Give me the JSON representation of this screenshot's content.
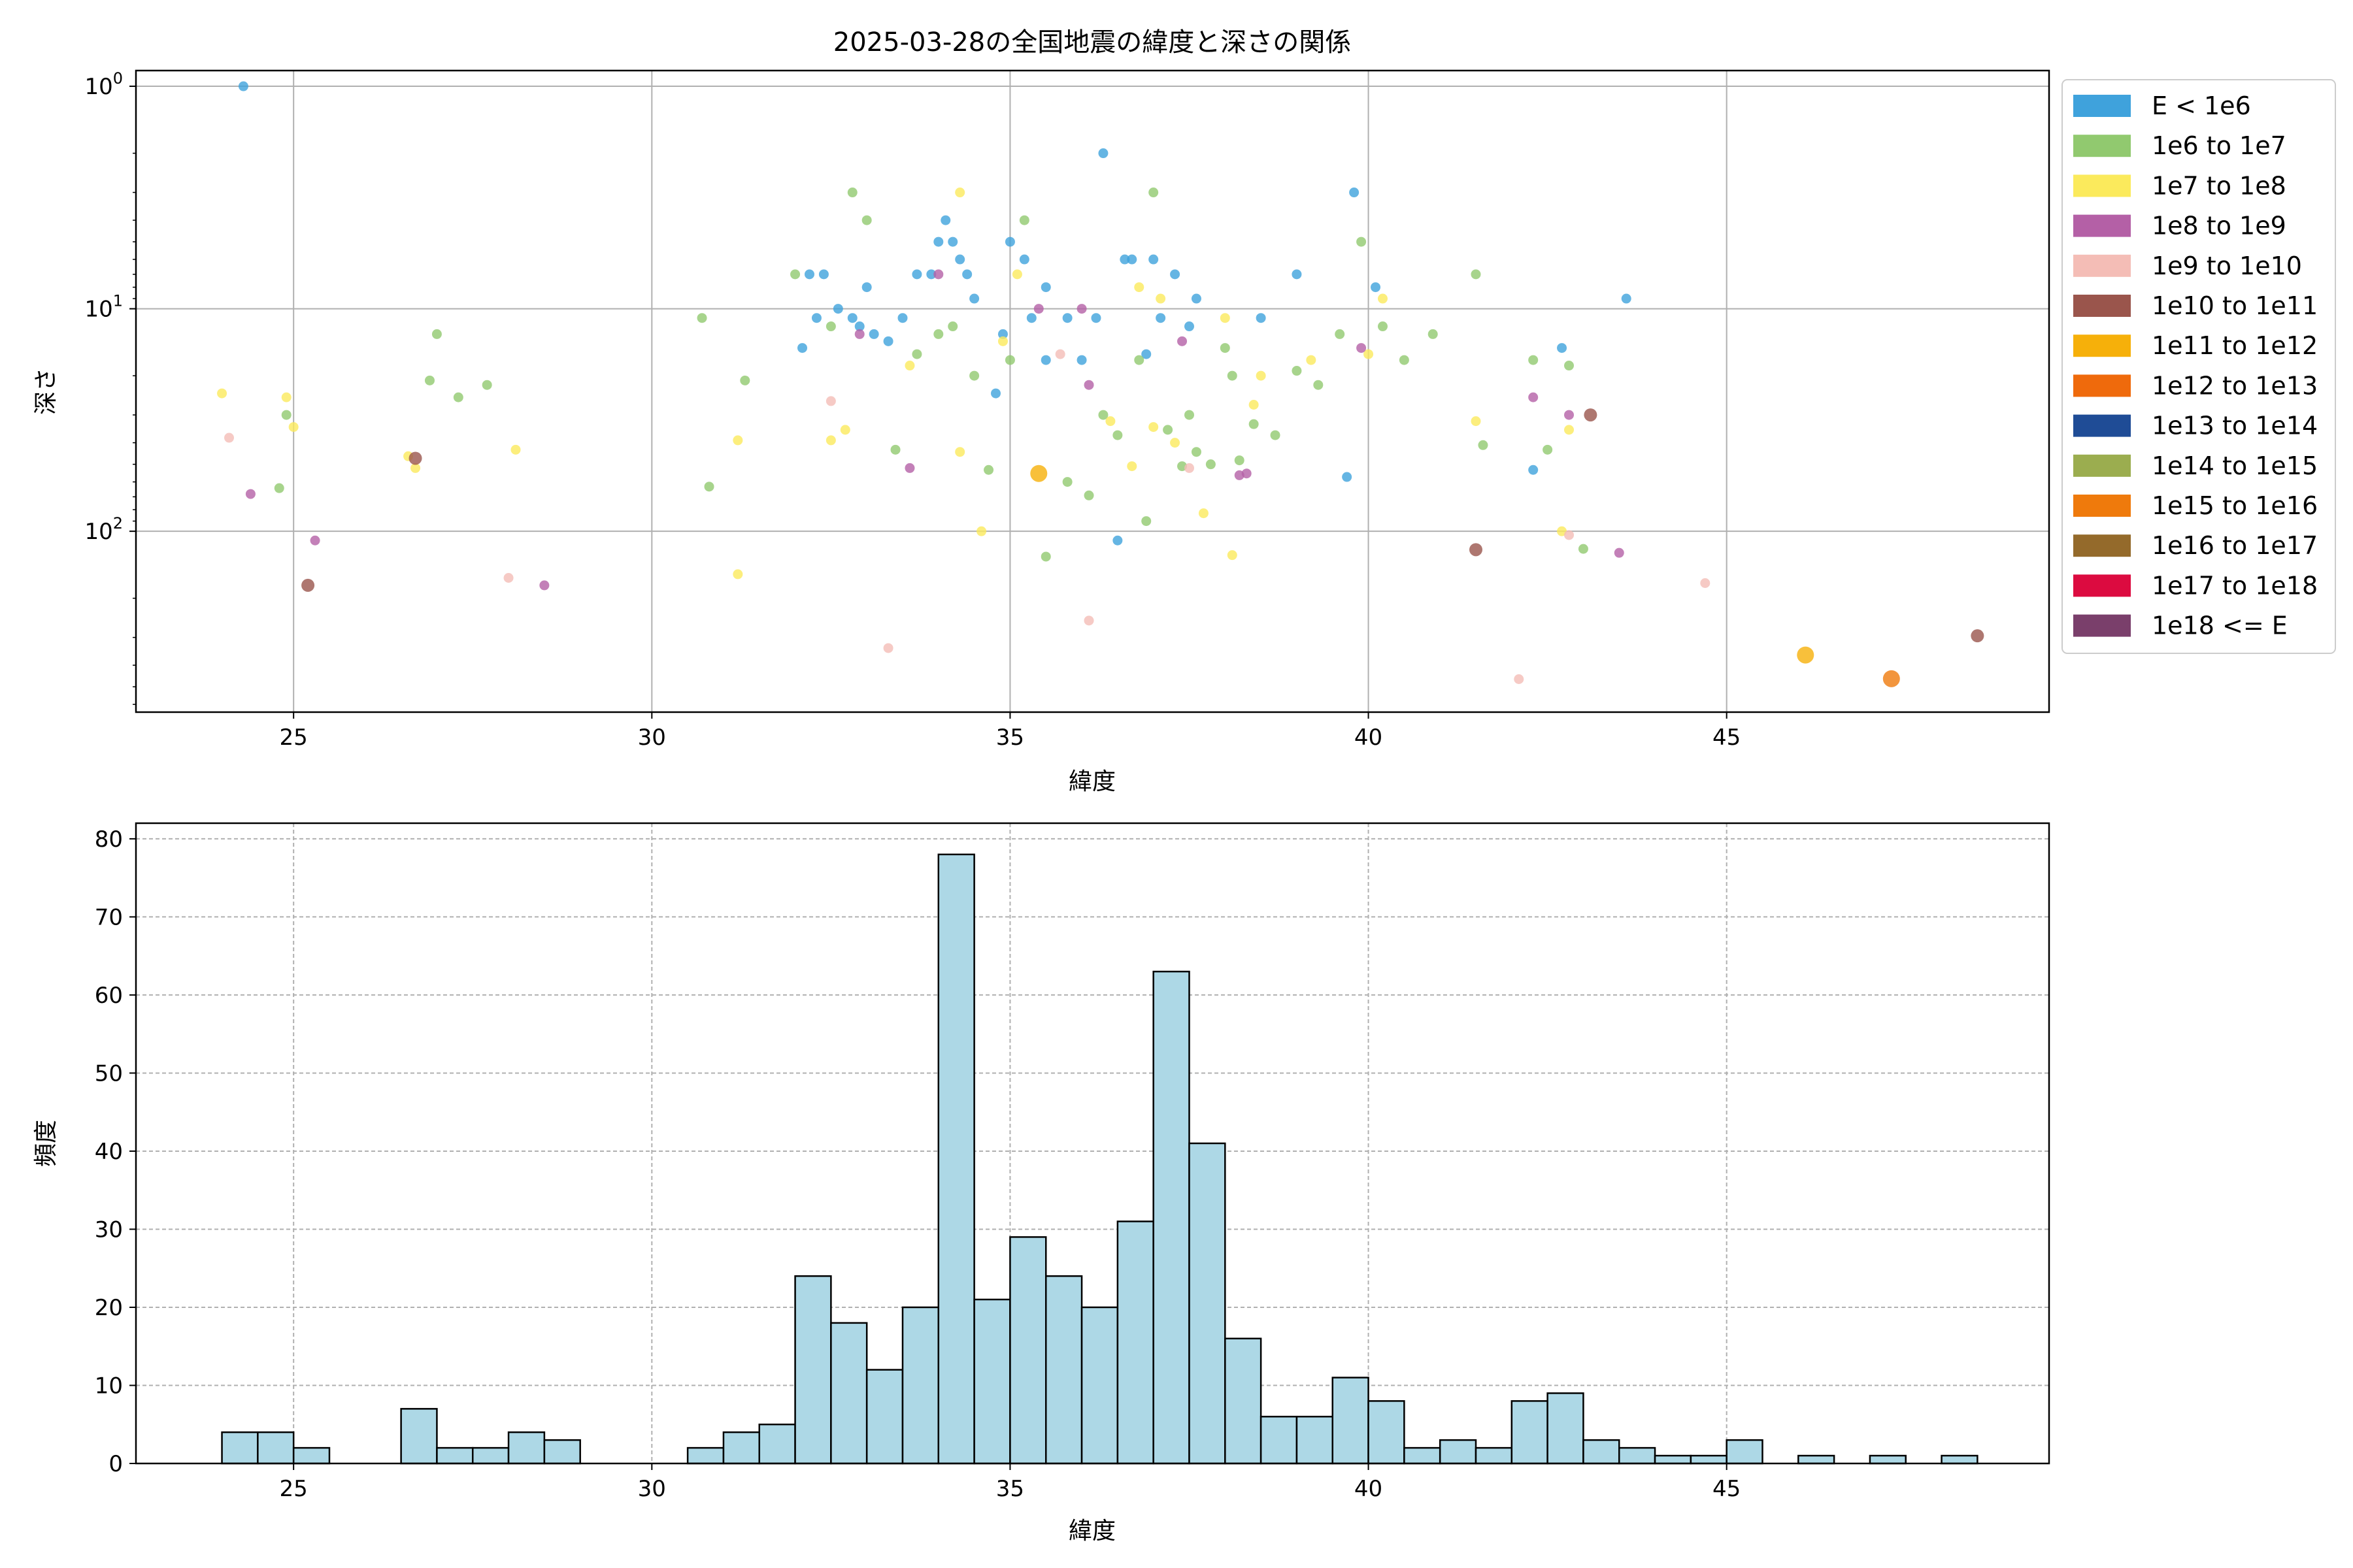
{
  "title": "2025-03-28の全国地震の緯度と深さの関係",
  "legend": {
    "entries": [
      {
        "label": "E < 1e6",
        "color": "#3fa2dc"
      },
      {
        "label": "1e6 to 1e7",
        "color": "#91c96f"
      },
      {
        "label": "1e7 to 1e8",
        "color": "#fbea5c"
      },
      {
        "label": "1e8 to 1e9",
        "color": "#b460a6"
      },
      {
        "label": "1e9 to 1e10",
        "color": "#f4bdb6"
      },
      {
        "label": "1e10 to 1e11",
        "color": "#9a554c"
      },
      {
        "label": "1e11 to 1e12",
        "color": "#f6b00a"
      },
      {
        "label": "1e12 to 1e13",
        "color": "#ef6a0c"
      },
      {
        "label": "1e13 to 1e14",
        "color": "#1f4c96"
      },
      {
        "label": "1e14 to 1e15",
        "color": "#9bad4f"
      },
      {
        "label": "1e15 to 1e16",
        "color": "#ef7a0c"
      },
      {
        "label": "1e16 to 1e17",
        "color": "#946a2b"
      },
      {
        "label": "1e17 to 1e18",
        "color": "#dc0b40"
      },
      {
        "label": "1e18 <= E",
        "color": "#7a3f6b"
      }
    ]
  },
  "chart_data": [
    {
      "type": "scatter",
      "title": "2025-03-28の全国地震の緯度と深さの関係",
      "xlabel": "緯度",
      "ylabel": "深さ",
      "xlim": [
        22.8,
        49.5
      ],
      "ylim": [
        650,
        0.85
      ],
      "yscale": "log",
      "y_inverted": true,
      "grid": true,
      "legend_position": "outside-right",
      "x_ticks": [
        25,
        30,
        35,
        40,
        45
      ],
      "y_ticks": [
        {
          "value": 1,
          "base": "10",
          "exp": "0"
        },
        {
          "value": 10,
          "base": "10",
          "exp": "1"
        },
        {
          "value": 100,
          "base": "10",
          "exp": "2"
        }
      ],
      "series": [
        {
          "class": 0,
          "points": [
            [
              24.3,
              1
            ],
            [
              32.1,
              15
            ],
            [
              32.2,
              7
            ],
            [
              32.3,
              11
            ],
            [
              32.4,
              7
            ],
            [
              32.6,
              10
            ],
            [
              32.8,
              11
            ],
            [
              33.0,
              8
            ],
            [
              33.1,
              13
            ],
            [
              33.5,
              11
            ],
            [
              33.7,
              7
            ],
            [
              33.9,
              7
            ],
            [
              34.0,
              5
            ],
            [
              34.1,
              4
            ],
            [
              34.2,
              5
            ],
            [
              34.3,
              6
            ],
            [
              34.4,
              7
            ],
            [
              34.5,
              9
            ],
            [
              34.8,
              24
            ],
            [
              35.0,
              5
            ],
            [
              35.2,
              6
            ],
            [
              35.3,
              11
            ],
            [
              35.5,
              8
            ],
            [
              35.8,
              11
            ],
            [
              36.0,
              17
            ],
            [
              36.3,
              2
            ],
            [
              36.6,
              6
            ],
            [
              36.7,
              6
            ],
            [
              36.9,
              16
            ],
            [
              37.0,
              6
            ],
            [
              37.1,
              11
            ],
            [
              37.3,
              7
            ],
            [
              37.5,
              12
            ],
            [
              38.5,
              11
            ],
            [
              39.0,
              7
            ],
            [
              39.8,
              3
            ],
            [
              40.1,
              8
            ],
            [
              42.3,
              53
            ],
            [
              42.7,
              15
            ],
            [
              43.6,
              9
            ],
            [
              35.5,
              17
            ],
            [
              36.2,
              11
            ],
            [
              34.9,
              13
            ],
            [
              37.6,
              9
            ],
            [
              33.3,
              14
            ],
            [
              32.9,
              12
            ],
            [
              36.5,
              110
            ],
            [
              39.7,
              57
            ]
          ]
        },
        {
          "class": 1,
          "points": [
            [
              24.8,
              64
            ],
            [
              24.9,
              30
            ],
            [
              26.9,
              21
            ],
            [
              27.0,
              13
            ],
            [
              27.3,
              25
            ],
            [
              27.7,
              22
            ],
            [
              30.7,
              11
            ],
            [
              30.8,
              63
            ],
            [
              31.3,
              21
            ],
            [
              32.0,
              7
            ],
            [
              32.5,
              12
            ],
            [
              32.8,
              3
            ],
            [
              33.0,
              4
            ],
            [
              33.4,
              43
            ],
            [
              33.7,
              16
            ],
            [
              34.0,
              13
            ],
            [
              34.2,
              12
            ],
            [
              34.5,
              20
            ],
            [
              34.7,
              53
            ],
            [
              35.0,
              17
            ],
            [
              35.2,
              4
            ],
            [
              35.5,
              130
            ],
            [
              35.8,
              60
            ],
            [
              36.1,
              69
            ],
            [
              36.3,
              30
            ],
            [
              36.5,
              37
            ],
            [
              36.8,
              17
            ],
            [
              37.0,
              3
            ],
            [
              37.2,
              35
            ],
            [
              37.4,
              51
            ],
            [
              37.6,
              44
            ],
            [
              37.8,
              50
            ],
            [
              38.0,
              15
            ],
            [
              38.2,
              48
            ],
            [
              38.4,
              33
            ],
            [
              38.7,
              37
            ],
            [
              39.0,
              19
            ],
            [
              39.3,
              22
            ],
            [
              39.6,
              13
            ],
            [
              39.9,
              5
            ],
            [
              40.2,
              12
            ],
            [
              40.5,
              17
            ],
            [
              40.9,
              13
            ],
            [
              41.5,
              7
            ],
            [
              41.6,
              41
            ],
            [
              42.3,
              17
            ],
            [
              42.5,
              43
            ],
            [
              42.8,
              18
            ],
            [
              43.0,
              120
            ],
            [
              36.9,
              90
            ],
            [
              37.5,
              30
            ],
            [
              38.1,
              20
            ]
          ]
        },
        {
          "class": 2,
          "points": [
            [
              24.0,
              24
            ],
            [
              24.9,
              25
            ],
            [
              25.0,
              34
            ],
            [
              26.6,
              46
            ],
            [
              26.7,
              52
            ],
            [
              28.1,
              43
            ],
            [
              31.2,
              39
            ],
            [
              31.2,
              156
            ],
            [
              32.5,
              39
            ],
            [
              32.7,
              35
            ],
            [
              33.6,
              18
            ],
            [
              34.3,
              3
            ],
            [
              34.3,
              44
            ],
            [
              34.6,
              100
            ],
            [
              34.9,
              14
            ],
            [
              35.1,
              7
            ],
            [
              36.4,
              32
            ],
            [
              36.7,
              51
            ],
            [
              37.0,
              34
            ],
            [
              37.3,
              40
            ],
            [
              37.7,
              83
            ],
            [
              38.0,
              11
            ],
            [
              38.1,
              128
            ],
            [
              38.4,
              27
            ],
            [
              38.5,
              20
            ],
            [
              39.2,
              17
            ],
            [
              40.0,
              16
            ],
            [
              40.2,
              9
            ],
            [
              41.5,
              32
            ],
            [
              42.7,
              100
            ],
            [
              42.8,
              35
            ],
            [
              37.1,
              9
            ],
            [
              36.8,
              8
            ]
          ]
        },
        {
          "class": 3,
          "points": [
            [
              24.4,
              68
            ],
            [
              25.3,
              110
            ],
            [
              28.5,
              175
            ],
            [
              32.9,
              13
            ],
            [
              33.6,
              52
            ],
            [
              34.0,
              7
            ],
            [
              35.4,
              10
            ],
            [
              36.0,
              10
            ],
            [
              36.1,
              22
            ],
            [
              37.4,
              14
            ],
            [
              38.2,
              56
            ],
            [
              38.3,
              55
            ],
            [
              39.9,
              15
            ],
            [
              42.3,
              25
            ],
            [
              42.8,
              30
            ],
            [
              43.5,
              125
            ]
          ]
        },
        {
          "class": 4,
          "points": [
            [
              24.1,
              38
            ],
            [
              28.0,
              162
            ],
            [
              32.5,
              26
            ],
            [
              33.3,
              335
            ],
            [
              35.7,
              16
            ],
            [
              36.1,
              252
            ],
            [
              37.5,
              52
            ],
            [
              42.1,
              462
            ],
            [
              42.8,
              104
            ],
            [
              44.7,
              171
            ]
          ]
        },
        {
          "class": 5,
          "points": [
            [
              25.2,
              175
            ],
            [
              26.7,
              47
            ],
            [
              41.5,
              121
            ],
            [
              43.1,
              30
            ],
            [
              48.5,
              295
            ]
          ]
        },
        {
          "class": 6,
          "points": [
            [
              35.4,
              55
            ],
            [
              46.1,
              360
            ]
          ]
        },
        {
          "class": 10,
          "points": [
            [
              47.3,
              460
            ]
          ]
        }
      ]
    },
    {
      "type": "bar",
      "subtype": "histogram",
      "xlabel": "緯度",
      "ylabel": "頻度",
      "xlim": [
        22.8,
        49.5
      ],
      "ylim": [
        0,
        82
      ],
      "grid": true,
      "grid_style": "dashed",
      "x_ticks": [
        25,
        30,
        35,
        40,
        45
      ],
      "y_ticks": [
        0,
        10,
        20,
        30,
        40,
        50,
        60,
        70,
        80
      ],
      "bin_start": 24.0,
      "bin_width": 0.5,
      "values": [
        4,
        4,
        2,
        0,
        0,
        7,
        2,
        2,
        4,
        3,
        0,
        0,
        0,
        2,
        4,
        5,
        24,
        18,
        12,
        20,
        78,
        21,
        29,
        24,
        20,
        31,
        63,
        41,
        16,
        6,
        6,
        11,
        8,
        2,
        3,
        2,
        8,
        9,
        3,
        2,
        1,
        1,
        3,
        0,
        1,
        0,
        1,
        0,
        1
      ]
    }
  ]
}
